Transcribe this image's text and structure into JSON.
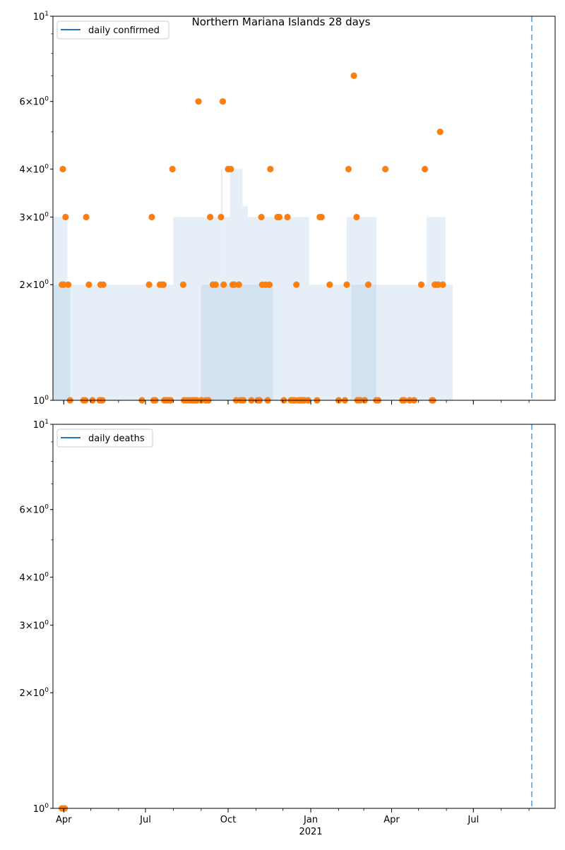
{
  "title": "Northern Mariana Islands 28 days",
  "colors": {
    "line": "#1f77b4",
    "points": "#ff7f0e",
    "fill_light": "#e6eff7",
    "fill_dark": "#d2e2ef",
    "vline": "#7fb0d8"
  },
  "x_axis": {
    "range": [
      "2020-03-20",
      "2021-09-30"
    ],
    "month_ticks": [
      "2020-04-01",
      "2020-05-01",
      "2020-06-01",
      "2020-07-01",
      "2020-08-01",
      "2020-09-01",
      "2020-10-01",
      "2020-11-01",
      "2020-12-01",
      "2021-01-01",
      "2021-02-01",
      "2021-03-01",
      "2021-04-01",
      "2021-05-01",
      "2021-06-01",
      "2021-07-01",
      "2021-08-01",
      "2021-09-01",
      "2021-10-01"
    ],
    "labels": [
      {
        "date": "2020-04-01",
        "text": "Apr"
      },
      {
        "date": "2020-07-01",
        "text": "Jul"
      },
      {
        "date": "2020-10-01",
        "text": "Oct"
      },
      {
        "date": "2021-01-01",
        "text": "Jan"
      },
      {
        "date": "2021-04-01",
        "text": "Apr"
      },
      {
        "date": "2021-07-01",
        "text": "Jul"
      }
    ],
    "year_label": "2021"
  },
  "y_ticks": [
    {
      "value": 1,
      "label": "10^0"
    },
    {
      "value": 2,
      "label": "2×10^0"
    },
    {
      "value": 3,
      "label": "3×10^0"
    },
    {
      "value": 4,
      "label": "4×10^0"
    },
    {
      "value": 6,
      "label": "6×10^0"
    },
    {
      "value": 10,
      "label": "10^1"
    }
  ],
  "chart_data": [
    {
      "type": "scatter",
      "legend": "daily confirmed",
      "y_scale": "log",
      "ylim": [
        1,
        10
      ],
      "legend_position": "top-left",
      "grid": false,
      "vline_date": "2021-09-04",
      "band_light": [
        {
          "start": "2020-03-20",
          "end": "2020-04-05",
          "top": 3
        },
        {
          "start": "2020-04-05",
          "end": "2020-07-01",
          "top": 2
        },
        {
          "start": "2020-07-01",
          "end": "2020-08-01",
          "top": 2
        },
        {
          "start": "2020-08-01",
          "end": "2020-09-10",
          "top": 3
        },
        {
          "start": "2020-09-10",
          "end": "2020-09-23",
          "top": 3
        },
        {
          "start": "2020-09-23",
          "end": "2020-09-25",
          "top": 4
        },
        {
          "start": "2020-09-25",
          "end": "2020-10-03",
          "top": 3
        },
        {
          "start": "2020-10-03",
          "end": "2020-10-17",
          "top": 4
        },
        {
          "start": "2020-10-17",
          "end": "2020-10-23",
          "top": 3.2
        },
        {
          "start": "2020-10-23",
          "end": "2020-11-20",
          "top": 3
        },
        {
          "start": "2020-11-20",
          "end": "2020-12-30",
          "top": 3
        },
        {
          "start": "2020-12-30",
          "end": "2021-02-10",
          "top": 2
        },
        {
          "start": "2021-02-10",
          "end": "2021-03-15",
          "top": 3
        },
        {
          "start": "2021-03-15",
          "end": "2021-05-10",
          "top": 2
        },
        {
          "start": "2021-05-10",
          "end": "2021-05-31",
          "top": 3
        },
        {
          "start": "2021-05-31",
          "end": "2021-06-08",
          "top": 2
        }
      ],
      "band_dark": [
        {
          "start": "2020-03-20",
          "end": "2020-04-08",
          "top": 2
        },
        {
          "start": "2020-09-01",
          "end": "2020-11-20",
          "top": 2
        },
        {
          "start": "2021-02-15",
          "end": "2021-03-15",
          "top": 2
        }
      ],
      "points": [
        {
          "x": "2020-03-30",
          "y": 2
        },
        {
          "x": "2020-03-31",
          "y": 4
        },
        {
          "x": "2020-04-01",
          "y": 2
        },
        {
          "x": "2020-04-03",
          "y": 3
        },
        {
          "x": "2020-04-06",
          "y": 2
        },
        {
          "x": "2020-04-08",
          "y": 1
        },
        {
          "x": "2020-04-23",
          "y": 1
        },
        {
          "x": "2020-04-25",
          "y": 1
        },
        {
          "x": "2020-04-26",
          "y": 3
        },
        {
          "x": "2020-04-29",
          "y": 2
        },
        {
          "x": "2020-05-03",
          "y": 1
        },
        {
          "x": "2020-05-11",
          "y": 1
        },
        {
          "x": "2020-05-12",
          "y": 2
        },
        {
          "x": "2020-05-13",
          "y": 1
        },
        {
          "x": "2020-05-14",
          "y": 1
        },
        {
          "x": "2020-05-15",
          "y": 2
        },
        {
          "x": "2020-06-27",
          "y": 1
        },
        {
          "x": "2020-07-05",
          "y": 2
        },
        {
          "x": "2020-07-08",
          "y": 3
        },
        {
          "x": "2020-07-10",
          "y": 1
        },
        {
          "x": "2020-07-12",
          "y": 1
        },
        {
          "x": "2020-07-17",
          "y": 2
        },
        {
          "x": "2020-07-19",
          "y": 2
        },
        {
          "x": "2020-07-21",
          "y": 2
        },
        {
          "x": "2020-07-22",
          "y": 1
        },
        {
          "x": "2020-07-24",
          "y": 1
        },
        {
          "x": "2020-07-26",
          "y": 1
        },
        {
          "x": "2020-07-27",
          "y": 1
        },
        {
          "x": "2020-07-29",
          "y": 1
        },
        {
          "x": "2020-07-31",
          "y": 4
        },
        {
          "x": "2020-08-12",
          "y": 2
        },
        {
          "x": "2020-08-13",
          "y": 1
        },
        {
          "x": "2020-08-16",
          "y": 1
        },
        {
          "x": "2020-08-19",
          "y": 1
        },
        {
          "x": "2020-08-22",
          "y": 1
        },
        {
          "x": "2020-08-25",
          "y": 1
        },
        {
          "x": "2020-08-27",
          "y": 1
        },
        {
          "x": "2020-08-29",
          "y": 6
        },
        {
          "x": "2020-09-01",
          "y": 1
        },
        {
          "x": "2020-09-06",
          "y": 1
        },
        {
          "x": "2020-09-09",
          "y": 1
        },
        {
          "x": "2020-09-11",
          "y": 3
        },
        {
          "x": "2020-09-14",
          "y": 2
        },
        {
          "x": "2020-09-17",
          "y": 2
        },
        {
          "x": "2020-09-23",
          "y": 3
        },
        {
          "x": "2020-09-25",
          "y": 6
        },
        {
          "x": "2020-09-26",
          "y": 2
        },
        {
          "x": "2020-10-01",
          "y": 4
        },
        {
          "x": "2020-10-04",
          "y": 4
        },
        {
          "x": "2020-10-06",
          "y": 2
        },
        {
          "x": "2020-10-08",
          "y": 2
        },
        {
          "x": "2020-10-10",
          "y": 1
        },
        {
          "x": "2020-10-13",
          "y": 2
        },
        {
          "x": "2020-10-15",
          "y": 1
        },
        {
          "x": "2020-10-18",
          "y": 1
        },
        {
          "x": "2020-10-27",
          "y": 1
        },
        {
          "x": "2020-11-03",
          "y": 1
        },
        {
          "x": "2020-11-05",
          "y": 1
        },
        {
          "x": "2020-11-07",
          "y": 3
        },
        {
          "x": "2020-11-08",
          "y": 2
        },
        {
          "x": "2020-11-12",
          "y": 2
        },
        {
          "x": "2020-11-14",
          "y": 1
        },
        {
          "x": "2020-11-16",
          "y": 2
        },
        {
          "x": "2020-11-17",
          "y": 4
        },
        {
          "x": "2020-11-25",
          "y": 3
        },
        {
          "x": "2020-11-27",
          "y": 3
        },
        {
          "x": "2020-12-02",
          "y": 1
        },
        {
          "x": "2020-12-06",
          "y": 3
        },
        {
          "x": "2020-12-10",
          "y": 1
        },
        {
          "x": "2020-12-12",
          "y": 1
        },
        {
          "x": "2020-12-14",
          "y": 1
        },
        {
          "x": "2020-12-16",
          "y": 2
        },
        {
          "x": "2020-12-18",
          "y": 1
        },
        {
          "x": "2020-12-21",
          "y": 1
        },
        {
          "x": "2020-12-23",
          "y": 1
        },
        {
          "x": "2020-12-25",
          "y": 1
        },
        {
          "x": "2020-12-29",
          "y": 1
        },
        {
          "x": "2021-01-08",
          "y": 1
        },
        {
          "x": "2021-01-11",
          "y": 3
        },
        {
          "x": "2021-01-13",
          "y": 3
        },
        {
          "x": "2021-01-22",
          "y": 2
        },
        {
          "x": "2021-02-01",
          "y": 1
        },
        {
          "x": "2021-02-08",
          "y": 1
        },
        {
          "x": "2021-02-10",
          "y": 2
        },
        {
          "x": "2021-02-12",
          "y": 4
        },
        {
          "x": "2021-02-18",
          "y": 7
        },
        {
          "x": "2021-02-21",
          "y": 3
        },
        {
          "x": "2021-02-22",
          "y": 1
        },
        {
          "x": "2021-02-25",
          "y": 1
        },
        {
          "x": "2021-03-02",
          "y": 1
        },
        {
          "x": "2021-03-06",
          "y": 2
        },
        {
          "x": "2021-03-15",
          "y": 1
        },
        {
          "x": "2021-03-17",
          "y": 1
        },
        {
          "x": "2021-03-25",
          "y": 4
        },
        {
          "x": "2021-04-13",
          "y": 1
        },
        {
          "x": "2021-04-15",
          "y": 1
        },
        {
          "x": "2021-04-21",
          "y": 1
        },
        {
          "x": "2021-04-26",
          "y": 1
        },
        {
          "x": "2021-05-04",
          "y": 2
        },
        {
          "x": "2021-05-08",
          "y": 4
        },
        {
          "x": "2021-05-16",
          "y": 1
        },
        {
          "x": "2021-05-17",
          "y": 1
        },
        {
          "x": "2021-05-19",
          "y": 2
        },
        {
          "x": "2021-05-21",
          "y": 2
        },
        {
          "x": "2021-05-23",
          "y": 2
        },
        {
          "x": "2021-05-25",
          "y": 5
        },
        {
          "x": "2021-05-28",
          "y": 2
        }
      ]
    },
    {
      "type": "scatter",
      "legend": "daily deaths",
      "y_scale": "log",
      "ylim": [
        1,
        10
      ],
      "legend_position": "top-left",
      "grid": false,
      "vline_date": "2021-09-04",
      "points": [
        {
          "x": "2020-03-30",
          "y": 1
        },
        {
          "x": "2020-04-02",
          "y": 1
        }
      ]
    }
  ]
}
